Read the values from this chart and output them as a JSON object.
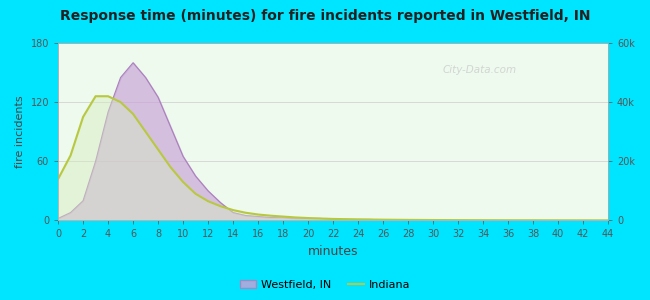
{
  "title": "Response time (minutes) for fire incidents reported in Westfield, IN",
  "xlabel": "minutes",
  "ylabel_left": "fire incidents",
  "background_color": "#00e5ff",
  "plot_bg_color": "#edfaed",
  "xlim": [
    0,
    44
  ],
  "ylim_left": [
    0,
    180
  ],
  "ylim_right": [
    0,
    60000
  ],
  "xticks": [
    0,
    2,
    4,
    6,
    8,
    10,
    12,
    14,
    16,
    18,
    20,
    22,
    24,
    26,
    28,
    30,
    32,
    34,
    36,
    38,
    40,
    42,
    44
  ],
  "yticks_left": [
    0,
    60,
    120,
    180
  ],
  "ytick_labels_right": [
    "0",
    "20k",
    "40k",
    "60k"
  ],
  "westfield_fill_color": "#c8a0d8",
  "westfield_line_color": "#aa80bb",
  "indiana_line_color": "#b8c840",
  "indiana_fill_color": "#d8ecc0",
  "watermark": "City-Data.com",
  "legend_westfield": "Westfield, IN",
  "legend_indiana": "Indiana",
  "westfield_x": [
    0,
    1,
    2,
    3,
    4,
    5,
    6,
    7,
    8,
    9,
    10,
    11,
    12,
    13,
    14,
    15,
    16,
    17,
    18,
    19,
    20,
    21,
    22,
    23,
    24,
    25,
    26,
    44
  ],
  "westfield_y": [
    2,
    8,
    20,
    60,
    110,
    145,
    160,
    145,
    125,
    95,
    65,
    45,
    30,
    18,
    8,
    5,
    4,
    3,
    3,
    2,
    2,
    2,
    1,
    1,
    1,
    1,
    0,
    0
  ],
  "indiana_x": [
    0,
    1,
    2,
    3,
    4,
    5,
    6,
    7,
    8,
    9,
    10,
    11,
    12,
    13,
    14,
    15,
    16,
    17,
    18,
    19,
    20,
    22,
    24,
    26,
    28,
    30,
    35,
    40,
    44
  ],
  "indiana_y_raw": [
    14000,
    22000,
    35000,
    42000,
    42000,
    40000,
    36000,
    30000,
    24000,
    18000,
    13000,
    9000,
    6500,
    4800,
    3500,
    2600,
    2000,
    1600,
    1300,
    1000,
    800,
    500,
    350,
    250,
    180,
    130,
    60,
    30,
    10
  ]
}
